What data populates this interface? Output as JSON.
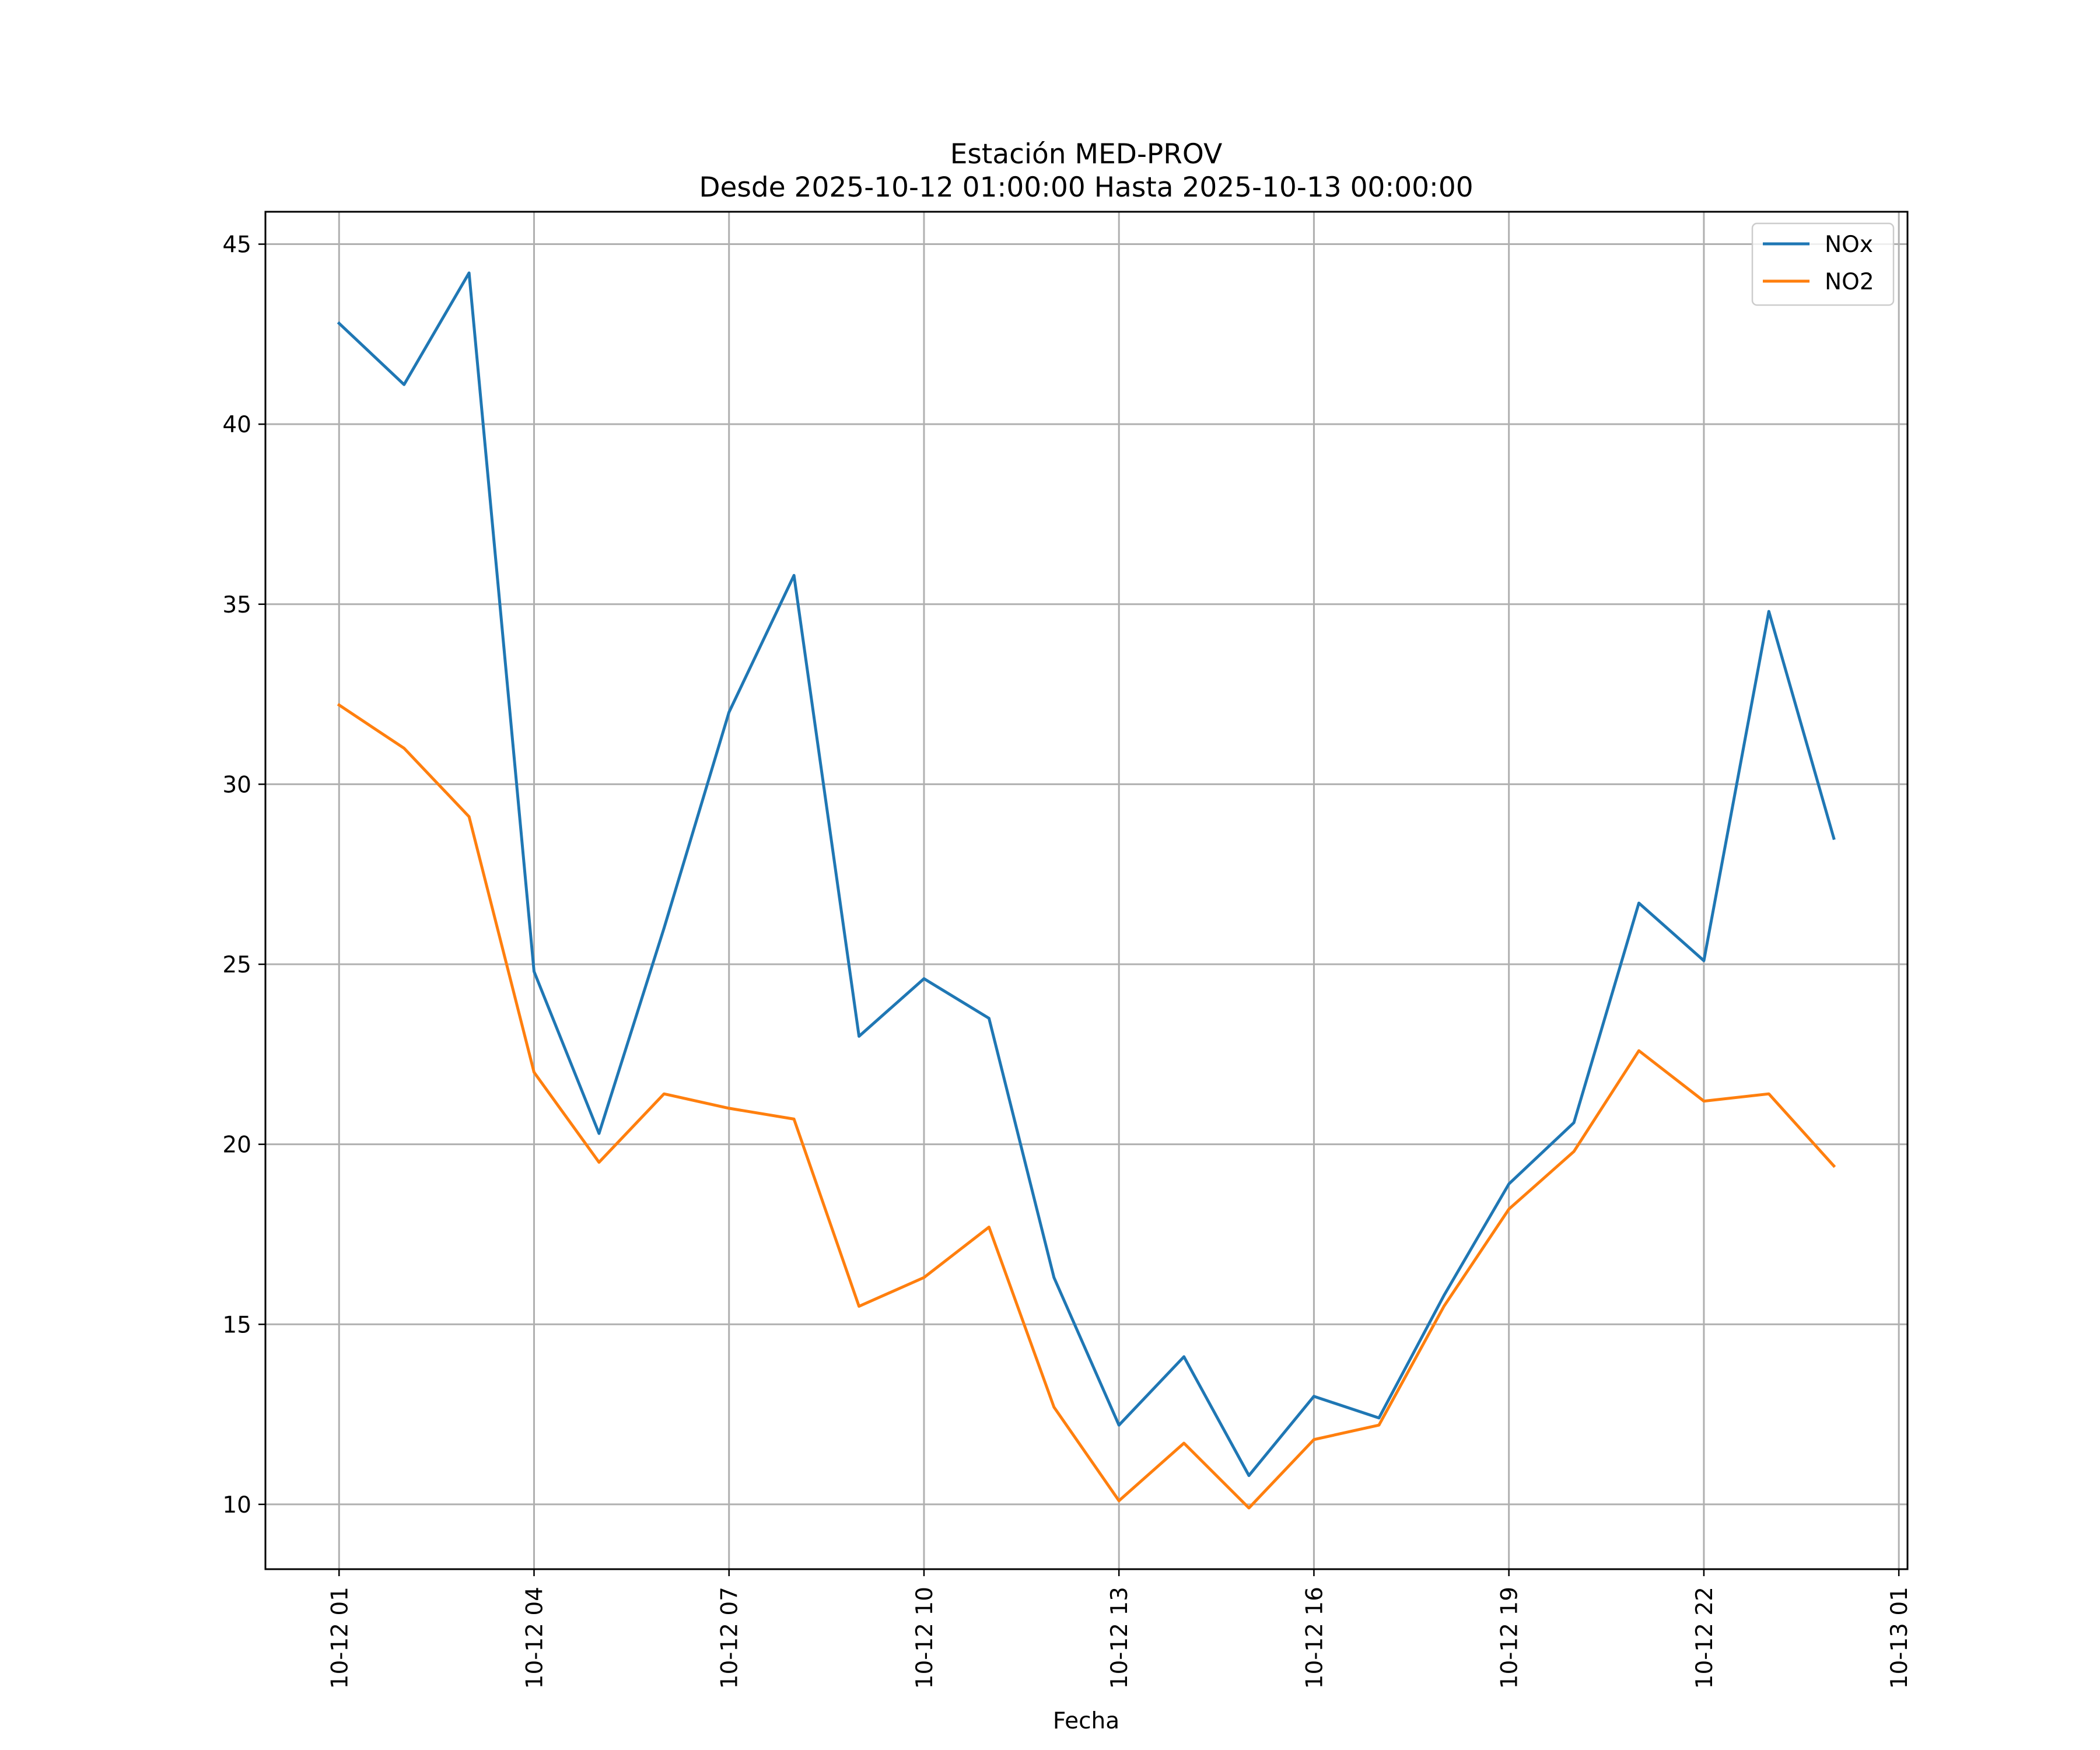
{
  "chart_data": {
    "type": "line",
    "title": "Estación MED-PROV",
    "subtitle": "Desde 2025-10-12 01:00:00 Hasta 2025-10-13 00:00:00",
    "xlabel": "Fecha",
    "ylabel": "",
    "x": [
      "2025-10-12 01:00",
      "2025-10-12 02:00",
      "2025-10-12 03:00",
      "2025-10-12 04:00",
      "2025-10-12 05:00",
      "2025-10-12 06:00",
      "2025-10-12 07:00",
      "2025-10-12 08:00",
      "2025-10-12 09:00",
      "2025-10-12 10:00",
      "2025-10-12 11:00",
      "2025-10-12 12:00",
      "2025-10-12 13:00",
      "2025-10-12 14:00",
      "2025-10-12 15:00",
      "2025-10-12 16:00",
      "2025-10-12 17:00",
      "2025-10-12 18:00",
      "2025-10-12 19:00",
      "2025-10-12 20:00",
      "2025-10-12 21:00",
      "2025-10-12 22:00",
      "2025-10-12 23:00",
      "2025-10-13 00:00"
    ],
    "series": [
      {
        "name": "NOx",
        "color": "#1f77b4",
        "values": [
          42.8,
          41.1,
          44.2,
          24.8,
          20.3,
          26.0,
          32.0,
          35.8,
          23.0,
          24.6,
          23.5,
          16.3,
          12.2,
          14.1,
          10.8,
          13.0,
          12.4,
          15.8,
          18.9,
          20.6,
          26.7,
          25.1,
          34.8,
          28.5
        ]
      },
      {
        "name": "NO2",
        "color": "#ff7f0e",
        "values": [
          32.2,
          31.0,
          29.1,
          22.0,
          19.5,
          21.4,
          21.0,
          20.7,
          15.5,
          16.3,
          17.7,
          12.7,
          10.1,
          11.7,
          9.9,
          11.8,
          12.2,
          15.5,
          18.2,
          19.8,
          22.6,
          21.2,
          21.4,
          19.4
        ]
      }
    ],
    "x_ticks": [
      "10-12 01",
      "10-12 04",
      "10-12 07",
      "10-12 10",
      "10-12 13",
      "10-12 16",
      "10-12 19",
      "10-12 22",
      "10-13 01"
    ],
    "x_range": [
      "2025-10-11 23:52",
      "2025-10-13 01:08"
    ],
    "y_ticks": [
      10,
      15,
      20,
      25,
      30,
      35,
      40,
      45
    ],
    "ylim": [
      8.2,
      45.9
    ],
    "grid": true,
    "legend_position": "top-right"
  }
}
